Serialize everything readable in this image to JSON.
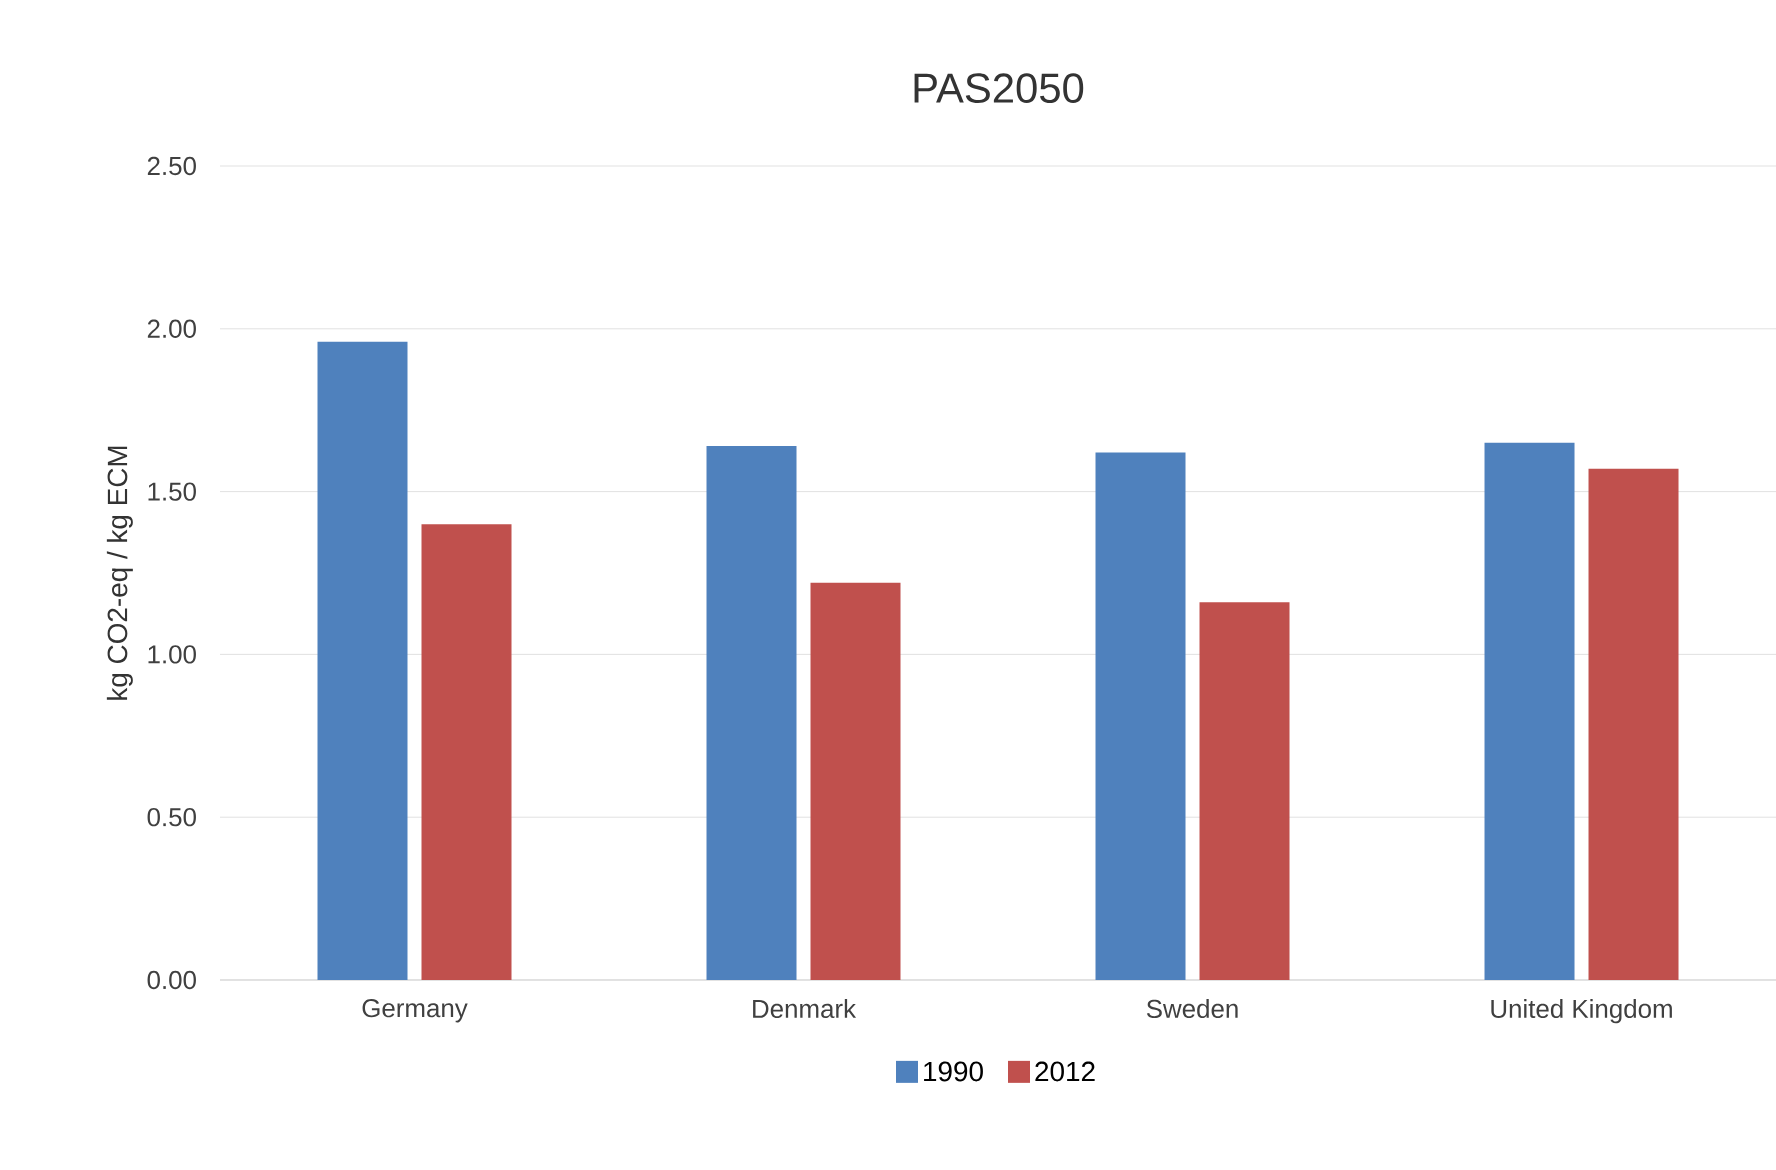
{
  "chart_data": {
    "type": "bar",
    "title": "PAS2050",
    "ylabel": "kg CO2-eq / kg ECM",
    "categories": [
      "Germany",
      "Denmark",
      "Sweden",
      "United Kingdom"
    ],
    "series": [
      {
        "name": "1990",
        "color": "#4f81bd",
        "values": [
          1.96,
          1.64,
          1.62,
          1.65
        ]
      },
      {
        "name": "2012",
        "color": "#c0504d",
        "values": [
          1.4,
          1.22,
          1.16,
          1.57
        ]
      }
    ],
    "ylim": [
      0,
      2.5
    ],
    "yticks": [
      {
        "value": 0,
        "label": "0.00"
      },
      {
        "value": 0.5,
        "label": "0.50"
      },
      {
        "value": 1,
        "label": "1.00"
      },
      {
        "value": 1.5,
        "label": "1.50"
      },
      {
        "value": 2,
        "label": "2.00"
      },
      {
        "value": 2.5,
        "label": "2.50"
      }
    ],
    "grid": "y",
    "legend": "bottom"
  }
}
